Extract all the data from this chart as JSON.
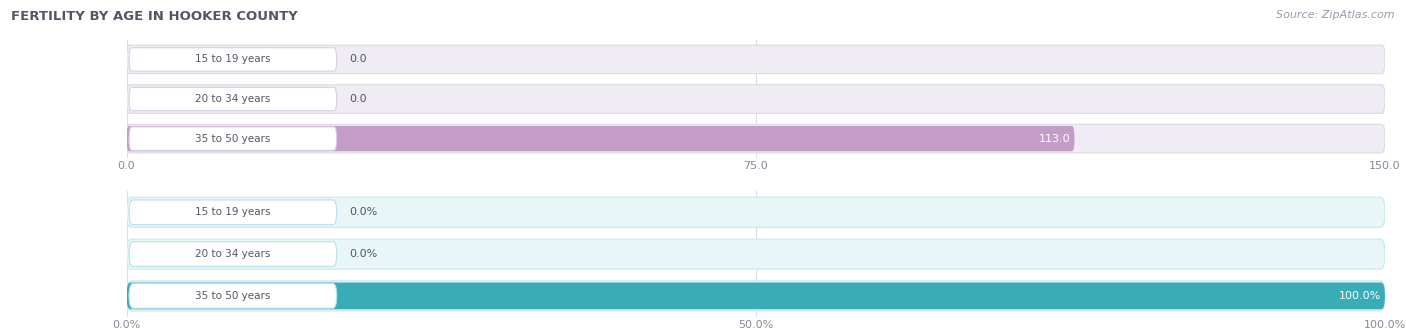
{
  "title": "FERTILITY BY AGE IN HOOKER COUNTY",
  "source": "Source: ZipAtlas.com",
  "chart1": {
    "categories": [
      "15 to 19 years",
      "20 to 34 years",
      "35 to 50 years"
    ],
    "values": [
      0.0,
      0.0,
      113.0
    ],
    "xlim": [
      0,
      150
    ],
    "xticks": [
      0.0,
      75.0,
      150.0
    ],
    "xtick_labels": [
      "0.0",
      "75.0",
      "150.0"
    ],
    "bar_color": "#c49cc8",
    "bar_bg_color": "#f0ecf4",
    "bar_border_color": "#ddd8e4",
    "value_labels": [
      "0.0",
      "0.0",
      "113.0"
    ]
  },
  "chart2": {
    "categories": [
      "15 to 19 years",
      "20 to 34 years",
      "35 to 50 years"
    ],
    "values": [
      0.0,
      0.0,
      100.0
    ],
    "xlim": [
      0,
      100
    ],
    "xticks": [
      0.0,
      50.0,
      100.0
    ],
    "xtick_labels": [
      "0.0%",
      "50.0%",
      "100.0%"
    ],
    "bar_color": "#3aacb8",
    "bar_bg_color": "#e8f6f8",
    "bar_border_color": "#c8e8ec",
    "value_labels": [
      "0.0%",
      "0.0%",
      "100.0%"
    ]
  },
  "label_pill_bg1": "#ffffff",
  "label_pill_border1": "#d8d0e4",
  "label_pill_bg2": "#ffffff",
  "label_pill_border2": "#b8e0e8",
  "label_text_color": "#555566",
  "title_color": "#555566",
  "source_color": "#999aaa",
  "grid_color": "#e0dde8",
  "tick_color": "#888899",
  "fig_bg": "#ffffff"
}
